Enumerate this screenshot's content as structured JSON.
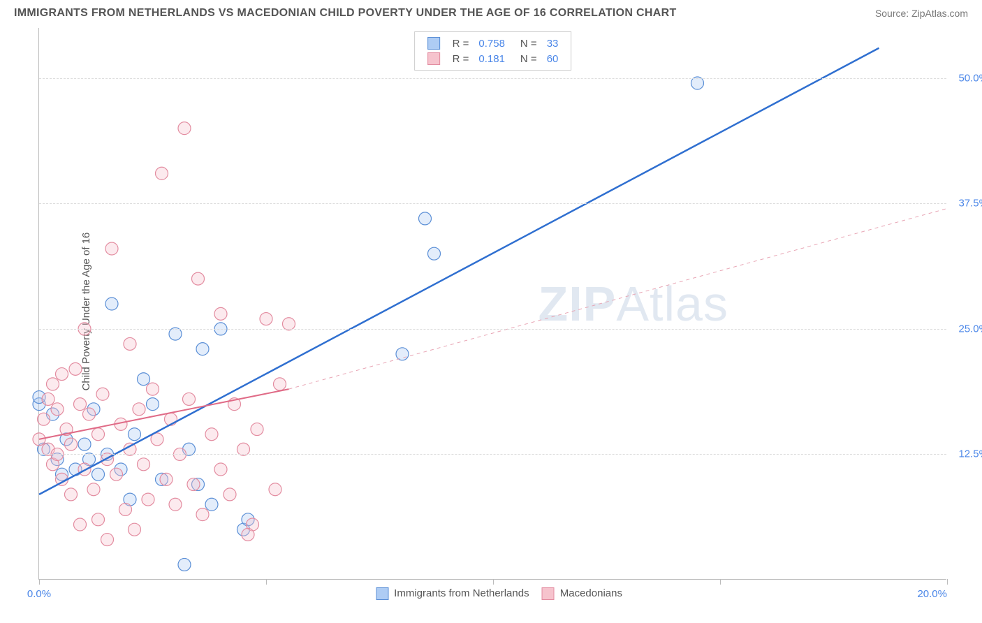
{
  "header": {
    "title": "IMMIGRANTS FROM NETHERLANDS VS MACEDONIAN CHILD POVERTY UNDER THE AGE OF 16 CORRELATION CHART",
    "source": "Source: ZipAtlas.com"
  },
  "chart": {
    "type": "scatter",
    "watermark": "ZIPAtlas",
    "ylabel": "Child Poverty Under the Age of 16",
    "xlim": [
      0,
      20
    ],
    "ylim": [
      0,
      55
    ],
    "y_gridlines": [
      12.5,
      25.0,
      37.5,
      50.0
    ],
    "y_tick_labels": [
      "12.5%",
      "25.0%",
      "37.5%",
      "50.0%"
    ],
    "x_ticks": [
      0,
      5,
      10,
      15,
      20
    ],
    "x_tick_labels_shown": {
      "0": "0.0%",
      "20": "20.0%"
    },
    "background_color": "#ffffff",
    "grid_color": "#dddddd",
    "axis_color": "#bbbbbb",
    "tick_label_color": "#4a86e8",
    "legend_top": {
      "rows": [
        {
          "swatch_fill": "#aeccf4",
          "swatch_stroke": "#5b8fd6",
          "R_label": "R =",
          "R": "0.758",
          "N_label": "N =",
          "N": "33"
        },
        {
          "swatch_fill": "#f6c3cd",
          "swatch_stroke": "#e38ca0",
          "R_label": "R =",
          "R": "0.181",
          "N_label": "N =",
          "N": "60"
        }
      ],
      "value_color": "#4a86e8",
      "label_color": "#555555"
    },
    "legend_bottom": [
      {
        "swatch_fill": "#aeccf4",
        "swatch_stroke": "#5b8fd6",
        "label": "Immigrants from Netherlands"
      },
      {
        "swatch_fill": "#f6c3cd",
        "swatch_stroke": "#e38ca0",
        "label": "Macedonians"
      }
    ],
    "series": [
      {
        "name": "Immigrants from Netherlands",
        "color_fill": "#aeccf4",
        "color_stroke": "#5b8fd6",
        "marker_radius": 9,
        "trend_line": {
          "x1": 0,
          "y1": 8.5,
          "x2": 18.5,
          "y2": 53,
          "stroke": "#2f6fd0",
          "width": 2.5,
          "dash": null
        },
        "points": [
          [
            0.0,
            17.5
          ],
          [
            0.1,
            13.0
          ],
          [
            0.3,
            16.5
          ],
          [
            0.4,
            12.0
          ],
          [
            0.5,
            10.5
          ],
          [
            0.6,
            14.0
          ],
          [
            0.8,
            11.0
          ],
          [
            1.0,
            13.5
          ],
          [
            1.1,
            12.0
          ],
          [
            1.2,
            17.0
          ],
          [
            1.3,
            10.5
          ],
          [
            1.5,
            12.5
          ],
          [
            1.6,
            27.5
          ],
          [
            1.8,
            11.0
          ],
          [
            2.0,
            8.0
          ],
          [
            2.1,
            14.5
          ],
          [
            2.3,
            20.0
          ],
          [
            2.5,
            17.5
          ],
          [
            2.7,
            10.0
          ],
          [
            3.0,
            24.5
          ],
          [
            3.2,
            1.5
          ],
          [
            3.3,
            13.0
          ],
          [
            3.5,
            9.5
          ],
          [
            3.6,
            23.0
          ],
          [
            3.8,
            7.5
          ],
          [
            4.0,
            25.0
          ],
          [
            4.5,
            5.0
          ],
          [
            4.6,
            6.0
          ],
          [
            8.0,
            22.5
          ],
          [
            8.5,
            36.0
          ],
          [
            8.7,
            32.5
          ],
          [
            14.5,
            49.5
          ],
          [
            0.0,
            18.2
          ]
        ]
      },
      {
        "name": "Macedonians",
        "color_fill": "#f6c3cd",
        "color_stroke": "#e38ca0",
        "marker_radius": 9,
        "trend_line_solid": {
          "x1": 0,
          "y1": 14,
          "x2": 5.5,
          "y2": 19,
          "stroke": "#e06b87",
          "width": 2,
          "dash": null
        },
        "trend_line_dash": {
          "x1": 5.5,
          "y1": 19,
          "x2": 20,
          "y2": 37,
          "stroke": "#e8a5b4",
          "width": 1,
          "dash": "5,5"
        },
        "points": [
          [
            0.0,
            14.0
          ],
          [
            0.1,
            16.0
          ],
          [
            0.2,
            13.0
          ],
          [
            0.2,
            18.0
          ],
          [
            0.3,
            11.5
          ],
          [
            0.3,
            19.5
          ],
          [
            0.4,
            12.5
          ],
          [
            0.4,
            17.0
          ],
          [
            0.5,
            10.0
          ],
          [
            0.5,
            20.5
          ],
          [
            0.6,
            15.0
          ],
          [
            0.7,
            13.5
          ],
          [
            0.7,
            8.5
          ],
          [
            0.8,
            21.0
          ],
          [
            0.9,
            17.5
          ],
          [
            0.9,
            5.5
          ],
          [
            1.0,
            25.0
          ],
          [
            1.0,
            11.0
          ],
          [
            1.1,
            16.5
          ],
          [
            1.2,
            9.0
          ],
          [
            1.3,
            14.5
          ],
          [
            1.3,
            6.0
          ],
          [
            1.4,
            18.5
          ],
          [
            1.5,
            12.0
          ],
          [
            1.5,
            4.0
          ],
          [
            1.6,
            33.0
          ],
          [
            1.7,
            10.5
          ],
          [
            1.8,
            15.5
          ],
          [
            1.9,
            7.0
          ],
          [
            2.0,
            13.0
          ],
          [
            2.0,
            23.5
          ],
          [
            2.1,
            5.0
          ],
          [
            2.2,
            17.0
          ],
          [
            2.3,
            11.5
          ],
          [
            2.4,
            8.0
          ],
          [
            2.5,
            19.0
          ],
          [
            2.6,
            14.0
          ],
          [
            2.7,
            40.5
          ],
          [
            2.8,
            10.0
          ],
          [
            2.9,
            16.0
          ],
          [
            3.0,
            7.5
          ],
          [
            3.1,
            12.5
          ],
          [
            3.2,
            45.0
          ],
          [
            3.3,
            18.0
          ],
          [
            3.4,
            9.5
          ],
          [
            3.5,
            30.0
          ],
          [
            3.6,
            6.5
          ],
          [
            3.8,
            14.5
          ],
          [
            4.0,
            26.5
          ],
          [
            4.0,
            11.0
          ],
          [
            4.2,
            8.5
          ],
          [
            4.3,
            17.5
          ],
          [
            4.5,
            13.0
          ],
          [
            4.7,
            5.5
          ],
          [
            4.8,
            15.0
          ],
          [
            5.0,
            26.0
          ],
          [
            5.2,
            9.0
          ],
          [
            5.3,
            19.5
          ],
          [
            5.5,
            25.5
          ],
          [
            4.6,
            4.5
          ]
        ]
      }
    ]
  }
}
